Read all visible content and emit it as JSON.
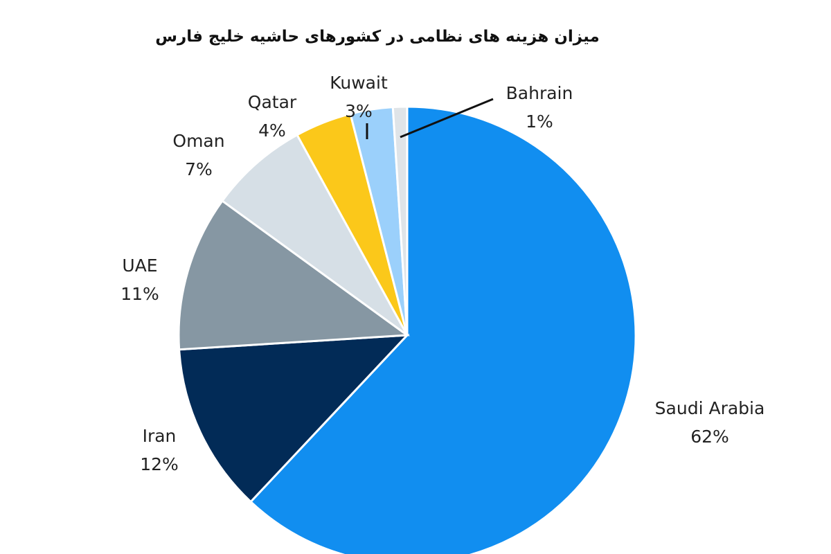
{
  "chart_data": {
    "type": "pie",
    "title": "میزان هزینه های نظامی در کشورهای حاشیه خلیج  فارس",
    "slices": [
      {
        "name": "Saudi Arabia",
        "value": 62,
        "label": "62%",
        "color": "#118ef0"
      },
      {
        "name": "Iran",
        "value": 12,
        "label": "12%",
        "color": "#022b57"
      },
      {
        "name": "UAE",
        "value": 11,
        "label": "11%",
        "color": "#8697a3"
      },
      {
        "name": "Oman",
        "value": 7,
        "label": "7%",
        "color": "#d6dfe6"
      },
      {
        "name": "Qatar",
        "value": 4,
        "label": "4%",
        "color": "#fbc81a"
      },
      {
        "name": "Kuwait",
        "value": 3,
        "label": "3%",
        "color": "#9bd0fb"
      },
      {
        "name": "Bahrain",
        "value": 1,
        "label": "1%",
        "color": "#dfe4e8"
      }
    ],
    "legend": "none",
    "data_labels": "outside"
  }
}
